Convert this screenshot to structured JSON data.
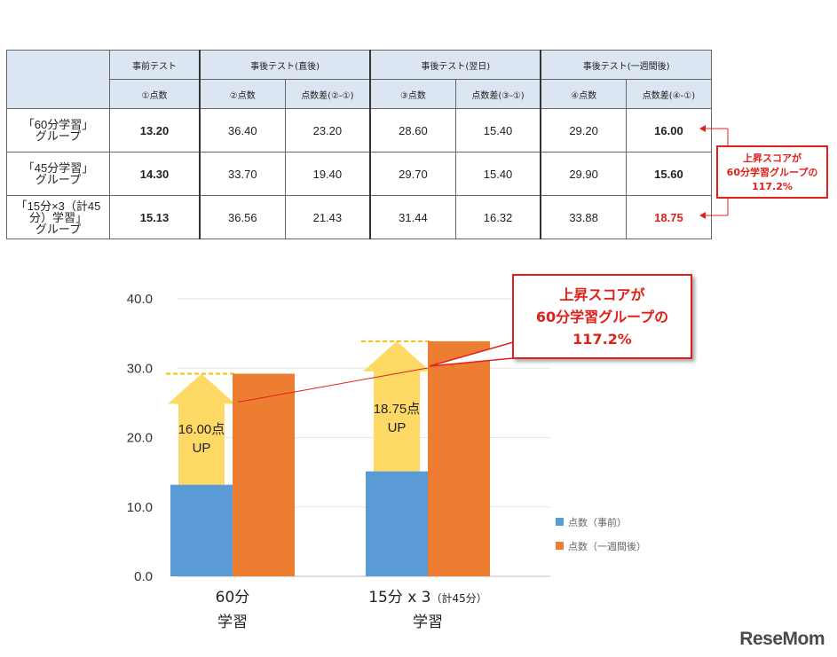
{
  "table": {
    "header_groups": [
      "事前テスト",
      "事後テスト(直後)",
      "事後テスト(翌日)",
      "事後テスト(一週間後)"
    ],
    "subheaders": [
      "①点数",
      "②点数",
      "点数差(②-①)",
      "③点数",
      "点数差(③-①)",
      "④点数",
      "点数差(④-①)"
    ],
    "rows": [
      {
        "group_line1": "「60分学習」",
        "group_line2": "グループ",
        "values": [
          "13.20",
          "36.40",
          "23.20",
          "28.60",
          "15.40",
          "29.20",
          "16.00"
        ]
      },
      {
        "group_line1": "「45分学習」",
        "group_line2": "グループ",
        "values": [
          "14.30",
          "33.70",
          "19.40",
          "29.70",
          "15.40",
          "29.90",
          "15.60"
        ]
      },
      {
        "group_line1": "「15分×3（計45分）学習」",
        "group_line2": "グループ",
        "values": [
          "15.13",
          "36.56",
          "21.43",
          "31.44",
          "16.32",
          "33.88",
          "18.75"
        ]
      }
    ]
  },
  "callout": {
    "line1": "上昇スコアが",
    "line2": "60分学習グループの",
    "line3": "117.2%"
  },
  "chart_data": {
    "type": "bar",
    "categories": [
      "60分 学習",
      "15分 x 3（計45分） 学習"
    ],
    "category_lines": [
      {
        "line1": "60分",
        "line1_small": "",
        "line2": "学習"
      },
      {
        "line1": "15分 x 3",
        "line1_small": "（計45分）",
        "line2": "学習"
      }
    ],
    "series": [
      {
        "name": "点数（事前）",
        "values": [
          13.2,
          15.13
        ],
        "color": "#5b9bd5"
      },
      {
        "name": "点数（一週間後）",
        "values": [
          29.2,
          33.88
        ],
        "color": "#ed7d31"
      }
    ],
    "annotations": [
      {
        "line1": "16.00点",
        "line2": "UP",
        "increase": 16.0
      },
      {
        "line1": "18.75点",
        "line2": "UP",
        "increase": 18.75
      }
    ],
    "ylim": [
      0,
      40
    ],
    "yticks": [
      "0.0",
      "10.0",
      "20.0",
      "30.0",
      "40.0"
    ],
    "legend_position": "right",
    "arrow_color": "#ffd966",
    "accent_color": "#e0201b"
  },
  "logo": "ReseMom"
}
